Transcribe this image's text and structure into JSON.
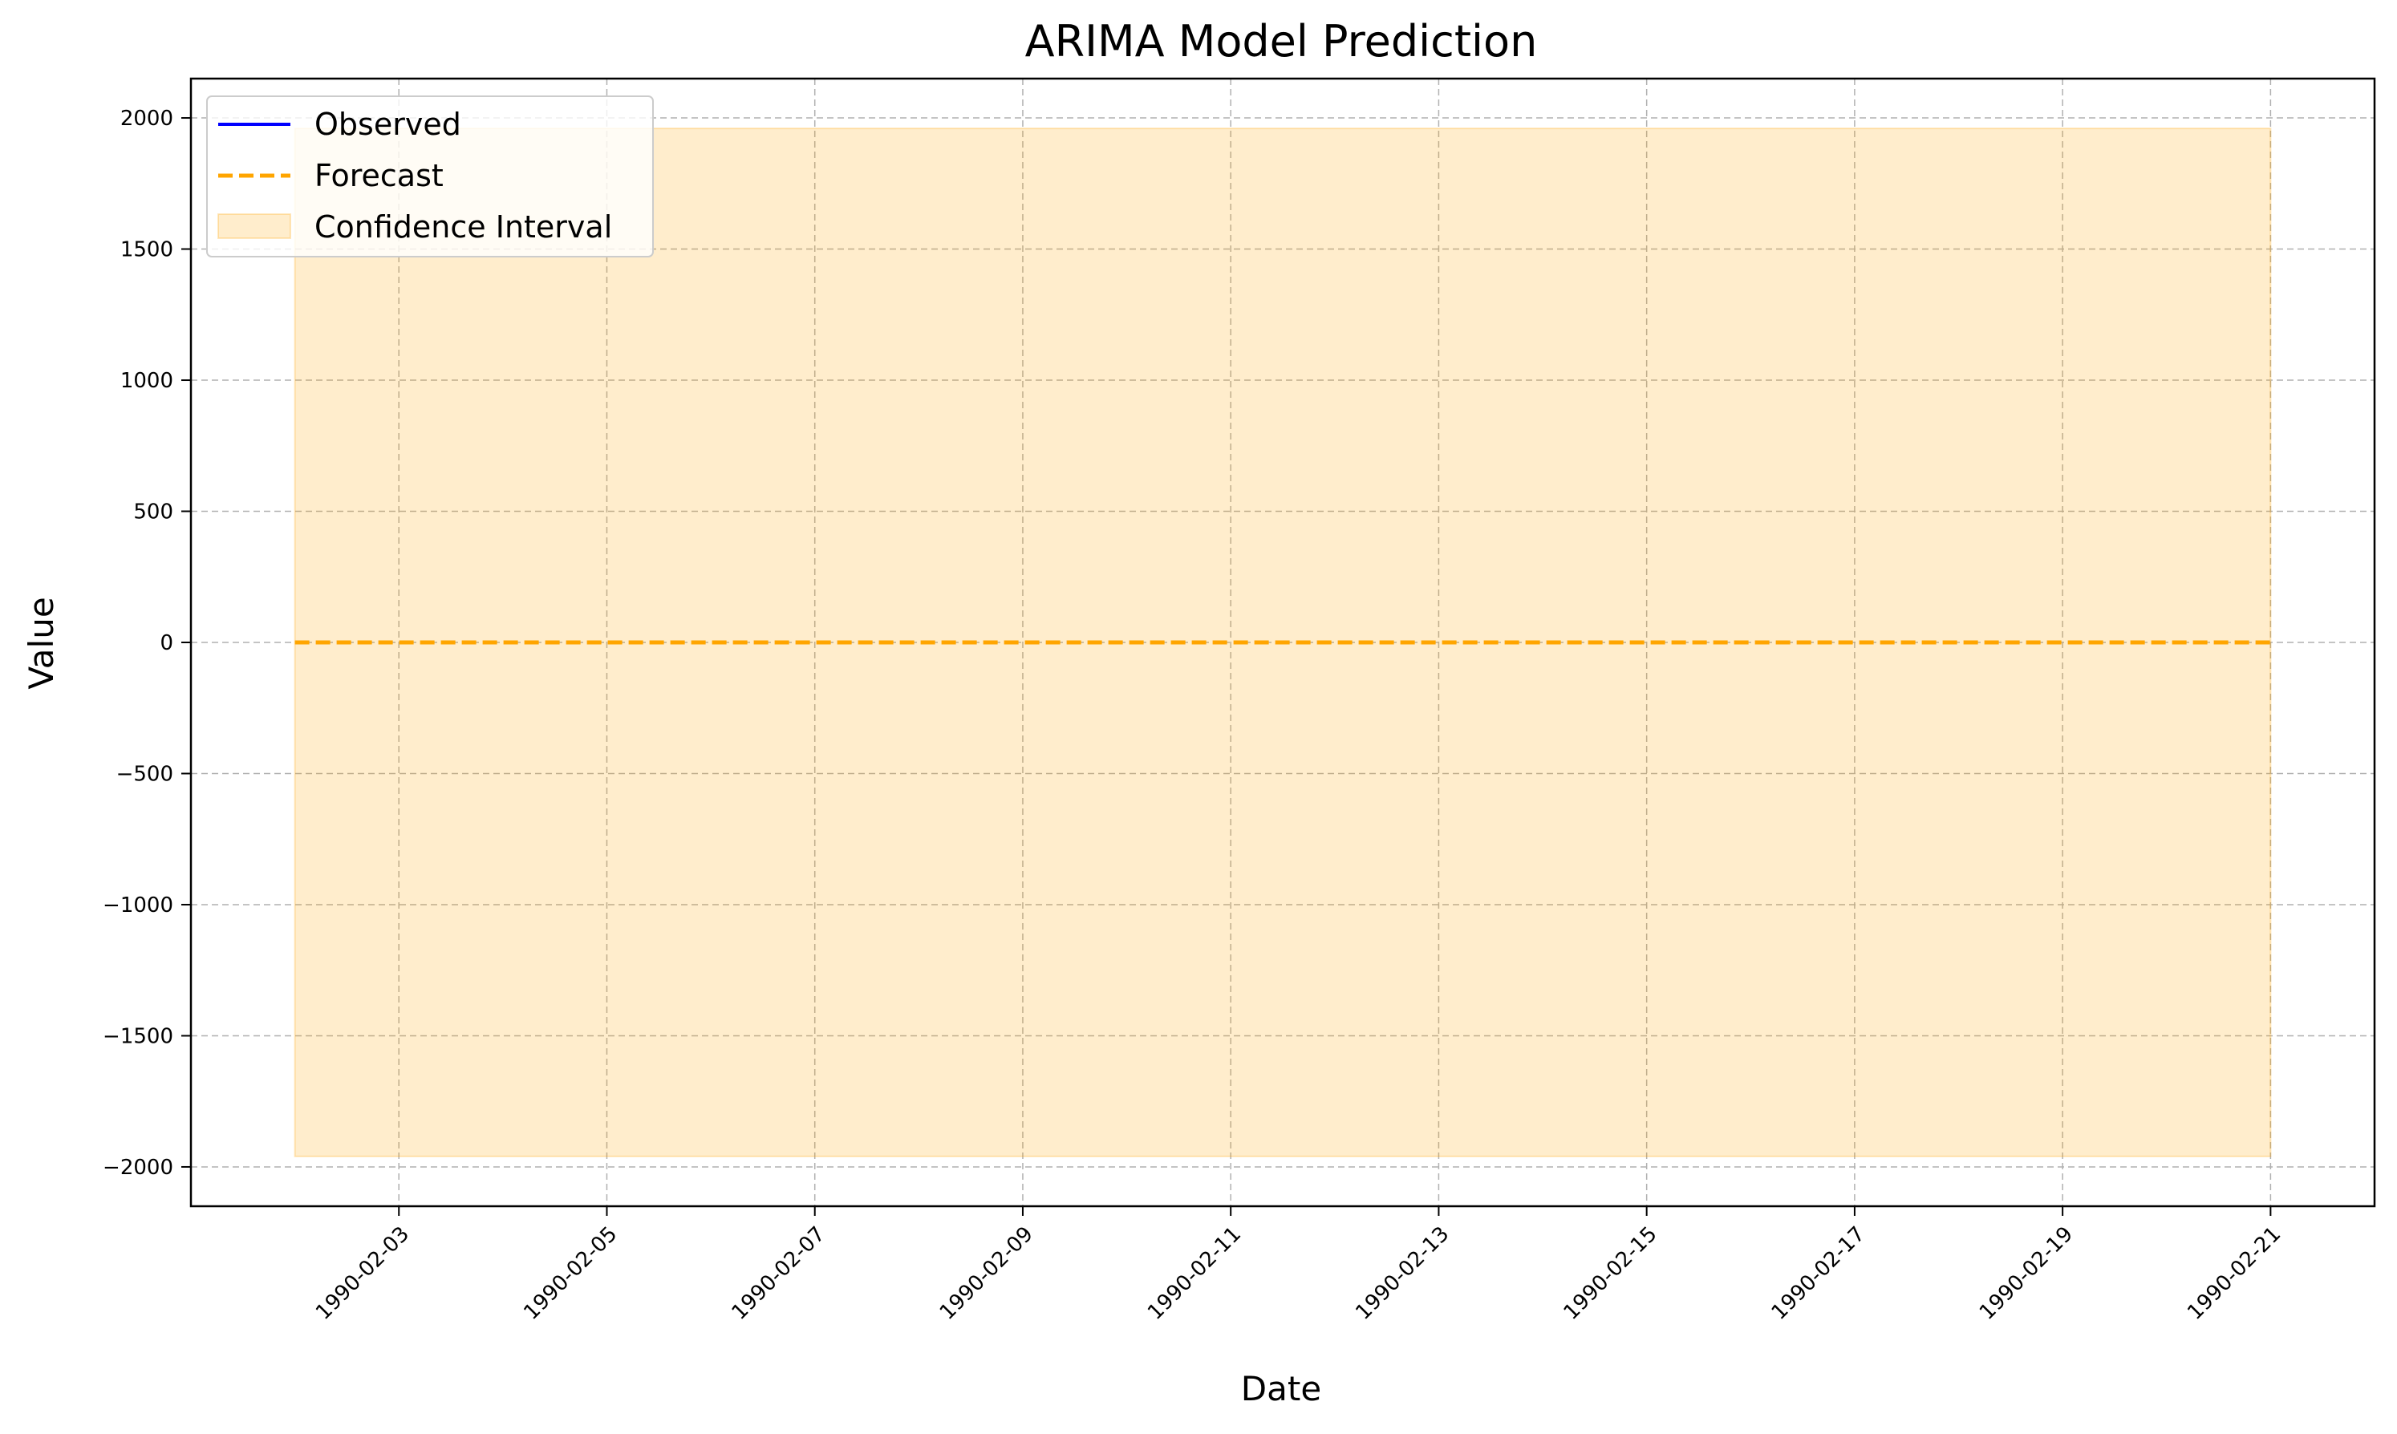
{
  "chart_data": {
    "type": "line",
    "title": "ARIMA Model Prediction",
    "xlabel": "Date",
    "ylabel": "Value",
    "x_ticks": [
      "1990-02-03",
      "1990-02-05",
      "1990-02-07",
      "1990-02-09",
      "1990-02-11",
      "1990-02-13",
      "1990-02-15",
      "1990-02-17",
      "1990-02-19",
      "1990-02-21"
    ],
    "y_ticks": [
      "2000",
      "1500",
      "1000",
      "500",
      "0",
      "−500",
      "−1000",
      "−1500",
      "−2000"
    ],
    "y_tick_values": [
      2000,
      1500,
      1000,
      500,
      0,
      -500,
      -1000,
      -1500,
      -2000
    ],
    "xlim": [
      "1990-02-01",
      "1990-02-22"
    ],
    "ylim": [
      -2150,
      2150
    ],
    "grid": true,
    "legend_position": "top-left",
    "series": [
      {
        "name": "Observed",
        "style": "solid",
        "color": "#0000ff",
        "x": [],
        "y": []
      },
      {
        "name": "Forecast",
        "style": "dashed",
        "color": "#ffa500",
        "x": [
          "1990-02-02",
          "1990-02-03",
          "1990-02-04",
          "1990-02-05",
          "1990-02-06",
          "1990-02-07",
          "1990-02-08",
          "1990-02-09",
          "1990-02-10",
          "1990-02-11",
          "1990-02-12",
          "1990-02-13",
          "1990-02-14",
          "1990-02-15",
          "1990-02-16",
          "1990-02-17",
          "1990-02-18",
          "1990-02-19",
          "1990-02-20",
          "1990-02-21"
        ],
        "y": [
          0,
          0,
          0,
          0,
          0,
          0,
          0,
          0,
          0,
          0,
          0,
          0,
          0,
          0,
          0,
          0,
          0,
          0,
          0,
          0
        ]
      }
    ],
    "confidence_interval": {
      "name": "Confidence Interval",
      "color": "#ffa500",
      "x_start": "1990-02-02",
      "x_end": "1990-02-21",
      "lower": -1960,
      "upper": 1960
    }
  }
}
